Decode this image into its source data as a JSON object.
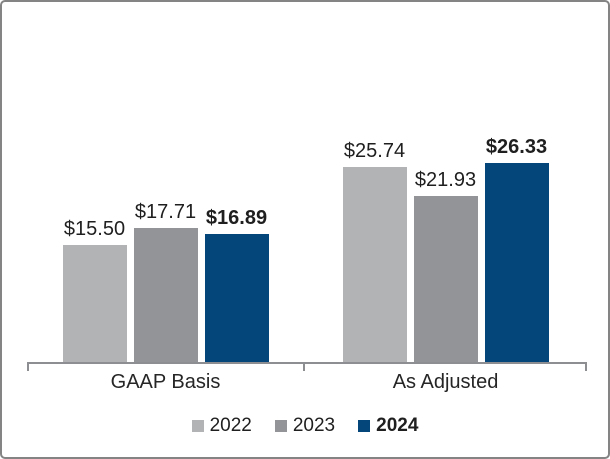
{
  "chart_data": {
    "type": "bar",
    "title": "",
    "xlabel": "",
    "ylabel": "",
    "categories": [
      "GAAP Basis",
      "As Adjusted"
    ],
    "series": [
      {
        "name": "2022",
        "color": "#b2b3b5",
        "emphasis": false,
        "values": [
          15.5,
          25.74
        ],
        "labels": [
          "$15.50",
          "$25.74"
        ]
      },
      {
        "name": "2023",
        "color": "#929498",
        "emphasis": false,
        "values": [
          17.71,
          21.93
        ],
        "labels": [
          "$17.71",
          "$21.93"
        ]
      },
      {
        "name": "2024",
        "color": "#05467a",
        "emphasis": true,
        "values": [
          16.89,
          26.33
        ],
        "labels": [
          "$16.89",
          "$26.33"
        ]
      }
    ],
    "ylim": [
      0,
      27.5
    ],
    "grid": false,
    "legend_position": "bottom",
    "axis_color": "#8c8e91",
    "border_color": "#848484"
  }
}
